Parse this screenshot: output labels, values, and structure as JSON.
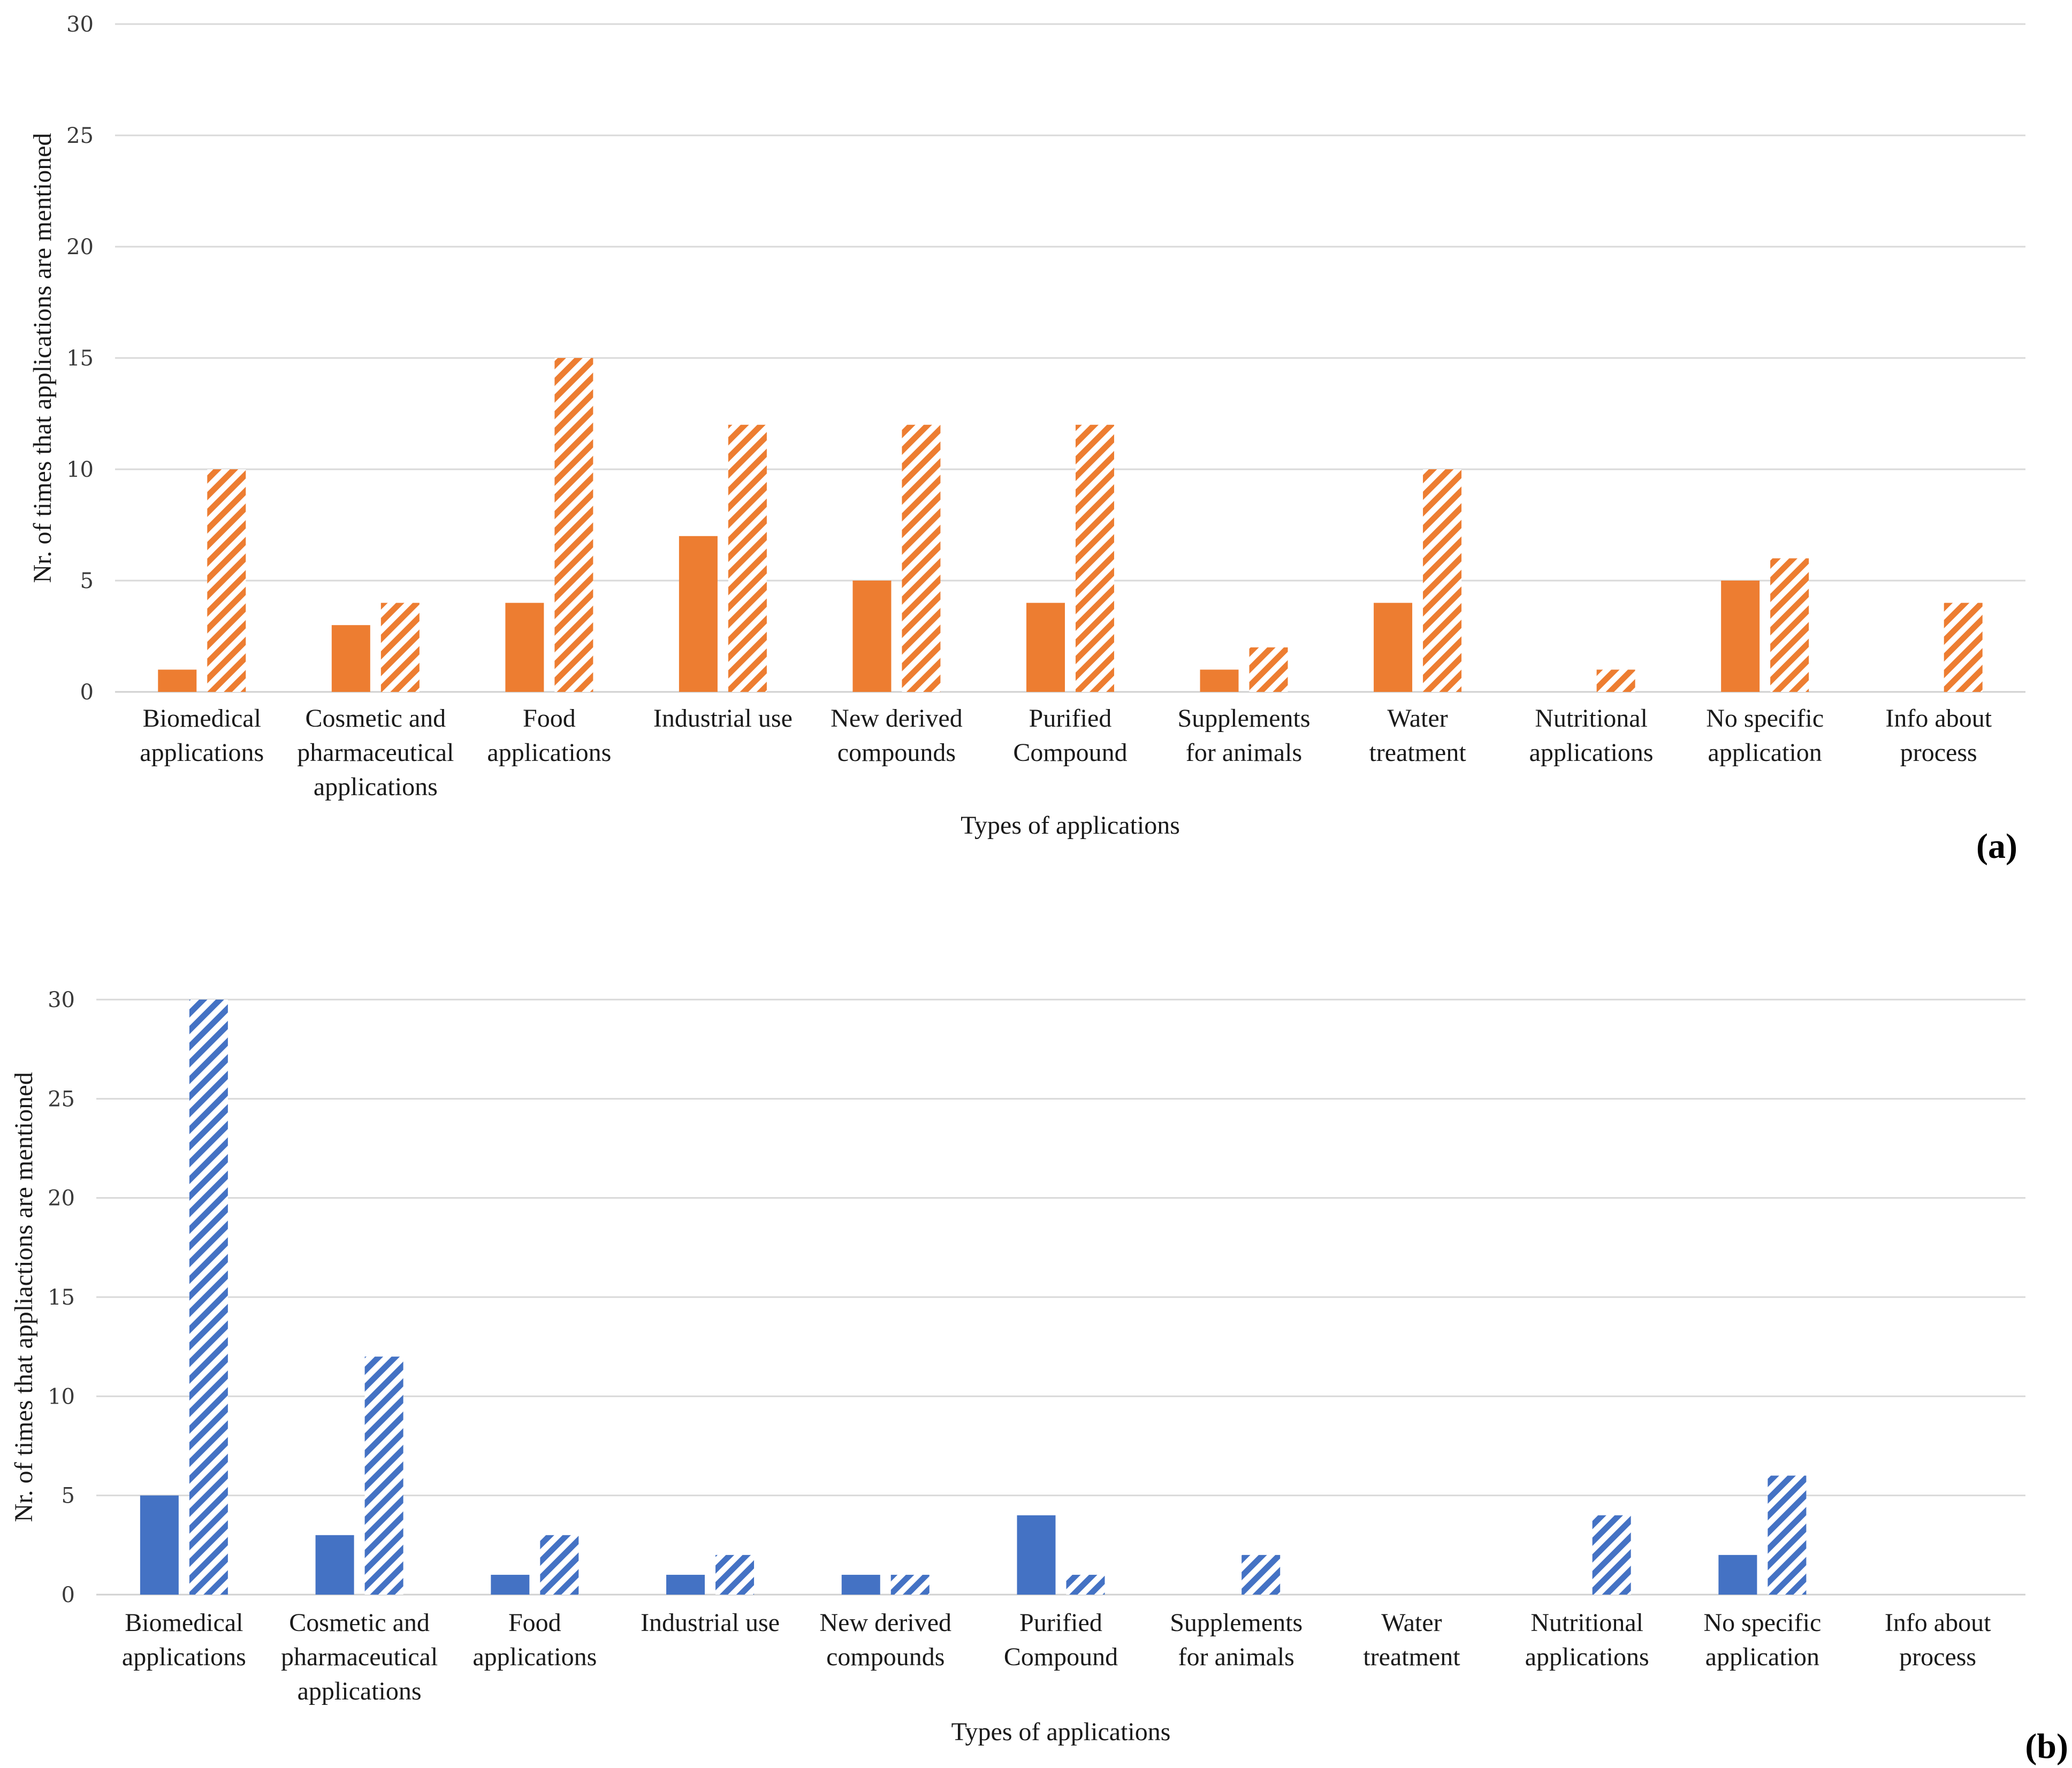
{
  "colors": {
    "orange": "#ED7D31",
    "blue": "#4472C4"
  },
  "chart_data": [
    {
      "panel_label": "(a)",
      "type": "bar",
      "color": "#ED7D31",
      "xlabel": "Types of applications",
      "ylabel": "Nr. of times that applications are mentioned",
      "ylim": [
        0,
        30
      ],
      "yticks": [
        0,
        5,
        10,
        15,
        20,
        25,
        30
      ],
      "grid": true,
      "categories": [
        [
          "Biomedical",
          "applications"
        ],
        [
          "Cosmetic and",
          "pharmaceutical",
          "applications"
        ],
        [
          "Food",
          "applications"
        ],
        [
          "Industrial use"
        ],
        [
          "New derived",
          "compounds"
        ],
        [
          "Purified",
          "Compound"
        ],
        [
          "Supplements",
          "for animals"
        ],
        [
          "Water",
          "treatment"
        ],
        [
          "Nutritional",
          "applications"
        ],
        [
          "No specific",
          "application"
        ],
        [
          "Info about",
          "process"
        ]
      ],
      "series": [
        {
          "name": "solid",
          "pattern": "solid",
          "values": [
            1,
            3,
            4,
            7,
            5,
            4,
            1,
            4,
            0,
            5,
            0
          ]
        },
        {
          "name": "hatched",
          "pattern": "hatched",
          "values": [
            10,
            4,
            15,
            12,
            12,
            12,
            2,
            10,
            1,
            6,
            4
          ]
        }
      ]
    },
    {
      "panel_label": "(b)",
      "type": "bar",
      "color": "#4472C4",
      "xlabel": "Types of applications",
      "ylabel": "Nr. of times that appliactions are mentioned",
      "ylim": [
        0,
        30
      ],
      "yticks": [
        0,
        5,
        10,
        15,
        20,
        25,
        30
      ],
      "grid": true,
      "categories": [
        [
          "Biomedical",
          "applications"
        ],
        [
          "Cosmetic and",
          "pharmaceutical",
          "applications"
        ],
        [
          "Food",
          "applications"
        ],
        [
          "Industrial use"
        ],
        [
          "New derived",
          "compounds"
        ],
        [
          "Purified",
          "Compound"
        ],
        [
          "Supplements",
          "for animals"
        ],
        [
          "Water",
          "treatment"
        ],
        [
          "Nutritional",
          "applications"
        ],
        [
          "No specific",
          "application"
        ],
        [
          "Info about",
          "process"
        ]
      ],
      "series": [
        {
          "name": "solid",
          "pattern": "solid",
          "values": [
            5,
            3,
            1,
            1,
            1,
            4,
            0,
            0,
            0,
            2,
            0
          ]
        },
        {
          "name": "hatched",
          "pattern": "hatched",
          "values": [
            30,
            12,
            3,
            2,
            1,
            1,
            2,
            0,
            4,
            6,
            0
          ]
        }
      ]
    }
  ]
}
